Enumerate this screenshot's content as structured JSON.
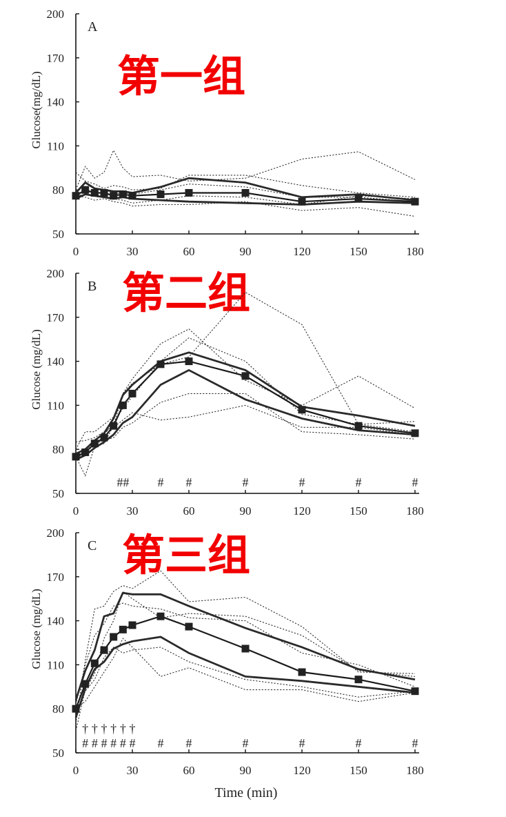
{
  "x_axis_label": "Time (min)",
  "chart_data": [
    {
      "type": "line",
      "panel": "A",
      "group_title": "第一组",
      "ylabel": "Glucose(mg/dL)",
      "ylim": [
        50,
        200
      ],
      "yticks": [
        50,
        80,
        110,
        140,
        170,
        200
      ],
      "xlim": [
        0,
        180
      ],
      "xticks": [
        0,
        30,
        60,
        90,
        120,
        150,
        180
      ],
      "mean": {
        "x": [
          0,
          5,
          10,
          15,
          20,
          25,
          30,
          45,
          60,
          90,
          120,
          150,
          180
        ],
        "y": [
          76,
          80,
          78,
          78,
          76,
          77,
          76,
          77,
          78,
          78,
          72,
          74,
          72
        ]
      },
      "bounds": [
        {
          "x": [
            0,
            5,
            10,
            15,
            20,
            25,
            30,
            45,
            60,
            90,
            120,
            150,
            180
          ],
          "y": [
            78,
            85,
            81,
            80,
            79,
            79,
            78,
            82,
            88,
            85,
            75,
            77,
            73
          ]
        },
        {
          "x": [
            0,
            5,
            10,
            15,
            20,
            25,
            30,
            45,
            60,
            90,
            120,
            150,
            180
          ],
          "y": [
            74,
            77,
            76,
            75,
            74,
            75,
            74,
            73,
            72,
            71,
            70,
            72,
            71
          ]
        }
      ],
      "individuals": [
        {
          "x": [
            0,
            5,
            10,
            15,
            20,
            25,
            30,
            45,
            60,
            90,
            120,
            150,
            180
          ],
          "y": [
            80,
            96,
            88,
            92,
            107,
            95,
            89,
            90,
            86,
            88,
            101,
            106,
            87
          ]
        },
        {
          "x": [
            0,
            5,
            10,
            15,
            20,
            25,
            30,
            45,
            60,
            90,
            120,
            150,
            180
          ],
          "y": [
            92,
            86,
            84,
            81,
            83,
            82,
            80,
            81,
            90,
            90,
            83,
            78,
            75
          ]
        },
        {
          "x": [
            0,
            5,
            10,
            15,
            20,
            25,
            30,
            45,
            60,
            90,
            120,
            150,
            180
          ],
          "y": [
            73,
            80,
            77,
            75,
            74,
            73,
            71,
            73,
            76,
            75,
            70,
            76,
            74
          ]
        },
        {
          "x": [
            0,
            5,
            10,
            15,
            20,
            25,
            30,
            45,
            60,
            90,
            120,
            150,
            180
          ],
          "y": [
            76,
            75,
            73,
            74,
            72,
            71,
            69,
            70,
            70,
            72,
            66,
            68,
            62
          ]
        },
        {
          "x": [
            0,
            5,
            10,
            15,
            20,
            25,
            30,
            45,
            60,
            90,
            120,
            150,
            180
          ],
          "y": [
            77,
            79,
            79,
            77,
            77,
            78,
            77,
            80,
            84,
            82,
            75,
            75,
            72
          ]
        }
      ],
      "markers": []
    },
    {
      "type": "line",
      "panel": "B",
      "group_title": "第二组",
      "ylabel": "Glucose (mg/dL)",
      "ylim": [
        50,
        200
      ],
      "yticks": [
        50,
        80,
        110,
        140,
        170,
        200
      ],
      "xlim": [
        0,
        180
      ],
      "xticks": [
        0,
        30,
        60,
        90,
        120,
        150,
        180
      ],
      "mean": {
        "x": [
          0,
          5,
          10,
          15,
          20,
          25,
          30,
          45,
          60,
          90,
          120,
          150,
          180
        ],
        "y": [
          75,
          78,
          84,
          88,
          96,
          110,
          118,
          138,
          140,
          130,
          107,
          96,
          91
        ]
      },
      "bounds": [
        {
          "x": [
            0,
            5,
            10,
            15,
            20,
            25,
            30,
            45,
            60,
            90,
            120,
            150,
            180
          ],
          "y": [
            77,
            80,
            86,
            91,
            101,
            117,
            124,
            140,
            146,
            134,
            109,
            103,
            96
          ]
        },
        {
          "x": [
            0,
            5,
            10,
            15,
            20,
            25,
            30,
            45,
            60,
            90,
            120,
            150,
            180
          ],
          "y": [
            73,
            76,
            81,
            85,
            90,
            98,
            102,
            124,
            134,
            114,
            101,
            93,
            90
          ]
        }
      ],
      "individuals": [
        {
          "x": [
            0,
            5,
            10,
            15,
            20,
            25,
            30,
            45,
            60,
            90,
            120,
            150,
            180
          ],
          "y": [
            75,
            62,
            82,
            84,
            96,
            118,
            125,
            138,
            143,
            187,
            165,
            97,
            92
          ]
        },
        {
          "x": [
            0,
            5,
            10,
            15,
            20,
            25,
            30,
            45,
            60,
            90,
            120,
            150,
            180
          ],
          "y": [
            80,
            92,
            92,
            97,
            102,
            118,
            128,
            152,
            162,
            127,
            110,
            130,
            108
          ]
        },
        {
          "x": [
            0,
            5,
            10,
            15,
            20,
            25,
            30,
            45,
            60,
            90,
            120,
            150,
            180
          ],
          "y": [
            85,
            86,
            88,
            92,
            95,
            100,
            105,
            100,
            102,
            110,
            95,
            95,
            90
          ]
        },
        {
          "x": [
            0,
            5,
            10,
            15,
            20,
            25,
            30,
            45,
            60,
            90,
            120,
            150,
            180
          ],
          "y": [
            72,
            80,
            84,
            86,
            88,
            95,
            98,
            112,
            118,
            118,
            92,
            90,
            87
          ]
        },
        {
          "x": [
            0,
            5,
            10,
            15,
            20,
            25,
            30,
            45,
            60,
            90,
            120,
            150,
            180
          ],
          "y": [
            76,
            79,
            82,
            90,
            98,
            108,
            116,
            140,
            156,
            140,
            104,
            97,
            99
          ]
        }
      ],
      "markers": [
        {
          "x": 25,
          "label": "##"
        },
        {
          "x": 45,
          "label": "#"
        },
        {
          "x": 60,
          "label": "#"
        },
        {
          "x": 90,
          "label": "#"
        },
        {
          "x": 120,
          "label": "#"
        },
        {
          "x": 150,
          "label": "#"
        },
        {
          "x": 180,
          "label": "#"
        }
      ]
    },
    {
      "type": "line",
      "panel": "C",
      "group_title": "第三组",
      "ylabel": "Glucose (mg/dL)",
      "ylim": [
        50,
        200
      ],
      "yticks": [
        50,
        80,
        110,
        140,
        170,
        200
      ],
      "xlim": [
        0,
        180
      ],
      "xticks": [
        0,
        30,
        60,
        90,
        120,
        150,
        180
      ],
      "mean": {
        "x": [
          0,
          5,
          10,
          15,
          20,
          25,
          30,
          45,
          60,
          90,
          120,
          150,
          180
        ],
        "y": [
          80,
          97,
          111,
          120,
          129,
          134,
          137,
          143,
          136,
          121,
          105,
          100,
          92
        ]
      },
      "bounds": [
        {
          "x": [
            0,
            5,
            10,
            15,
            20,
            25,
            30,
            45,
            60,
            90,
            120,
            150,
            180
          ],
          "y": [
            86,
            106,
            120,
            143,
            145,
            159,
            158,
            158,
            150,
            135,
            122,
            107,
            100
          ]
        },
        {
          "x": [
            0,
            5,
            10,
            15,
            20,
            25,
            30,
            45,
            60,
            90,
            120,
            150,
            180
          ],
          "y": [
            74,
            94,
            107,
            112,
            121,
            124,
            126,
            129,
            118,
            102,
            99,
            95,
            91
          ]
        }
      ],
      "individuals": [
        {
          "x": [
            0,
            5,
            10,
            15,
            20,
            25,
            30,
            45,
            60,
            90,
            120,
            150,
            180
          ],
          "y": [
            70,
            113,
            148,
            150,
            160,
            164,
            162,
            174,
            153,
            156,
            136,
            105,
            104
          ]
        },
        {
          "x": [
            0,
            5,
            10,
            15,
            20,
            25,
            30,
            45,
            60,
            90,
            120,
            150,
            180
          ],
          "y": [
            65,
            93,
            104,
            128,
            140,
            160,
            155,
            142,
            145,
            143,
            130,
            106,
            102
          ]
        },
        {
          "x": [
            0,
            5,
            10,
            15,
            20,
            25,
            30,
            45,
            60,
            90,
            120,
            150,
            180
          ],
          "y": [
            80,
            85,
            95,
            105,
            115,
            128,
            122,
            102,
            108,
            93,
            93,
            85,
            91
          ]
        },
        {
          "x": [
            0,
            5,
            10,
            15,
            20,
            25,
            30,
            45,
            60,
            90,
            120,
            150,
            180
          ],
          "y": [
            75,
            92,
            100,
            115,
            122,
            118,
            120,
            122,
            112,
            100,
            95,
            88,
            92
          ]
        },
        {
          "x": [
            0,
            5,
            10,
            15,
            20,
            25,
            30,
            45,
            60,
            90,
            120,
            150,
            180
          ],
          "y": [
            83,
            110,
            130,
            138,
            150,
            152,
            150,
            148,
            142,
            140,
            118,
            110,
            95
          ]
        }
      ],
      "markers": [
        {
          "x": 5,
          "label": "#"
        },
        {
          "x": 10,
          "label": "#"
        },
        {
          "x": 15,
          "label": "#"
        },
        {
          "x": 20,
          "label": "#"
        },
        {
          "x": 25,
          "label": "#"
        },
        {
          "x": 30,
          "label": "#"
        },
        {
          "x": 45,
          "label": "#"
        },
        {
          "x": 60,
          "label": "#"
        },
        {
          "x": 90,
          "label": "#"
        },
        {
          "x": 120,
          "label": "#"
        },
        {
          "x": 150,
          "label": "#"
        },
        {
          "x": 180,
          "label": "#"
        }
      ],
      "daggers": [
        {
          "x": 5,
          "label": "†"
        },
        {
          "x": 10,
          "label": "†"
        },
        {
          "x": 15,
          "label": "†"
        },
        {
          "x": 20,
          "label": "†"
        },
        {
          "x": 25,
          "label": "†"
        },
        {
          "x": 30,
          "label": "†"
        }
      ]
    }
  ]
}
